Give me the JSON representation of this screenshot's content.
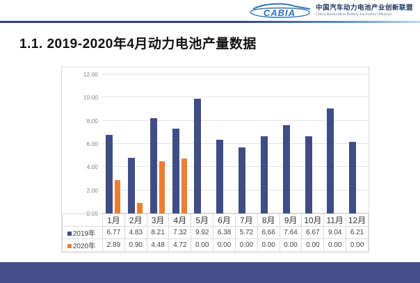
{
  "header": {
    "logo_text": "CABIA",
    "org_name_cn": "中国汽车动力电池产业创新联盟",
    "org_name_en": "China Automotive Battery Innovation Alliance"
  },
  "slide": {
    "title": "1.1. 2019-2020年4月动力电池产量数据"
  },
  "chart_data": {
    "type": "bar",
    "title": "",
    "categories": [
      "1月",
      "2月",
      "3月",
      "4月",
      "5月",
      "6月",
      "7月",
      "8月",
      "9月",
      "10月",
      "11月",
      "12月"
    ],
    "series": [
      {
        "name": "2019年",
        "color": "#3F4D87",
        "values": [
          6.77,
          4.83,
          8.21,
          7.32,
          9.92,
          6.38,
          5.72,
          6.66,
          7.64,
          6.67,
          9.04,
          6.21
        ]
      },
      {
        "name": "2020年",
        "color": "#ED7D31",
        "values": [
          2.89,
          0.9,
          4.48,
          4.72,
          0.0,
          0.0,
          0.0,
          0.0,
          0.0,
          0.0,
          0.0,
          0.0
        ]
      }
    ],
    "ylim": [
      0,
      12
    ],
    "y_tick_step": 2,
    "y_tick_labels": [
      "0.00",
      "2.00",
      "4.00",
      "6.00",
      "8.00",
      "10.00",
      "12.00"
    ],
    "grid": true,
    "legend_position": "data-table-left",
    "data_table_shown": true,
    "value_format_decimals": 2
  },
  "colors": {
    "bar_2019": "#3F4D87",
    "bar_2020": "#ED7D31",
    "footer_bar": "#444F8B",
    "header_rule_dark": "#2C3E80",
    "header_rule_light": "#BDD7EE",
    "logo_blue": "#2E74B5"
  }
}
